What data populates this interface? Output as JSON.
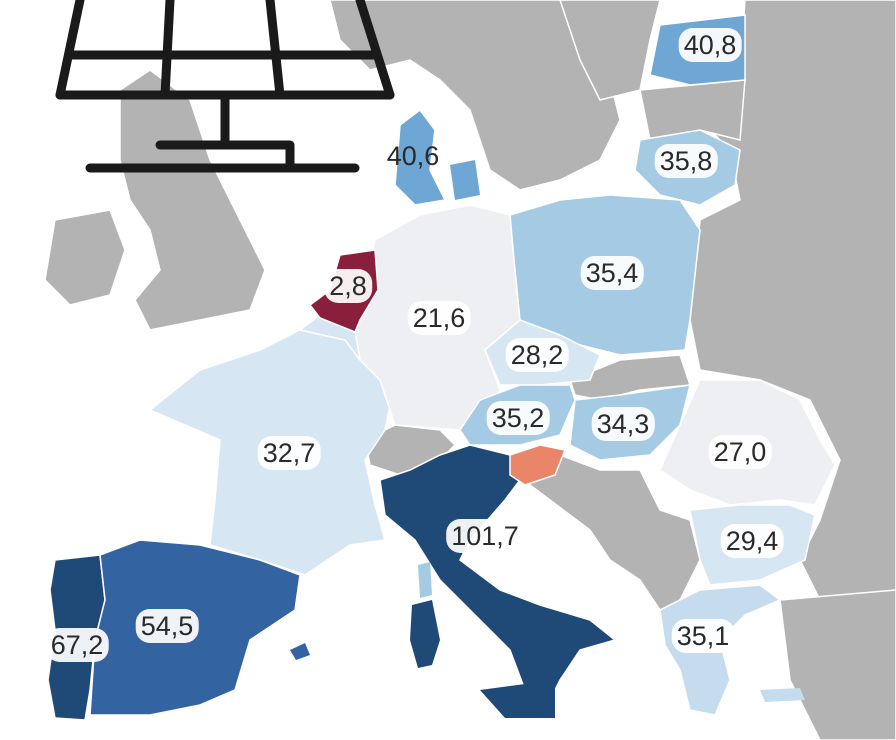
{
  "colors": {
    "sea": "#ffffff",
    "other_land": "#b3b3b3",
    "border": "#ffffff",
    "darkest_blue": "#1f4a78",
    "dark_blue": "#3363a0",
    "mid_blue": "#6fa7d4",
    "light_blue": "#a4cbe3",
    "pale_blue": "#c4dcee",
    "very_pale_blue": "#d6e6f2",
    "near_white": "#eeeff2",
    "salmon": "#e98568",
    "dark_red": "#8a1f3c"
  },
  "icon": "solar-panel-icon",
  "regions": {
    "portugal": {
      "value": "67,2",
      "color": "darkest_blue"
    },
    "spain": {
      "value": "54,5",
      "color": "dark_blue"
    },
    "france": {
      "value": "32,7",
      "color": "very_pale_blue"
    },
    "italy": {
      "value": "101,7",
      "color": "darkest_blue"
    },
    "germany": {
      "value": "21,6",
      "color": "near_white"
    },
    "netherlands": {
      "value": "2,8",
      "color": "dark_red"
    },
    "denmark": {
      "value": "40,6",
      "color": "mid_blue"
    },
    "estonia": {
      "value": "40,8",
      "color": "mid_blue"
    },
    "lithuania": {
      "value": "35,8",
      "color": "light_blue"
    },
    "poland": {
      "value": "35,4",
      "color": "light_blue"
    },
    "czechia": {
      "value": "28,2",
      "color": "very_pale_blue"
    },
    "austria": {
      "value": "35,2",
      "color": "light_blue"
    },
    "slovenia": {
      "value": "",
      "color": "salmon"
    },
    "hungary": {
      "value": "34,3",
      "color": "light_blue"
    },
    "romania": {
      "value": "27,0",
      "color": "near_white"
    },
    "bulgaria": {
      "value": "29,4",
      "color": "very_pale_blue"
    },
    "greece": {
      "value": "35,1",
      "color": "pale_blue"
    }
  }
}
